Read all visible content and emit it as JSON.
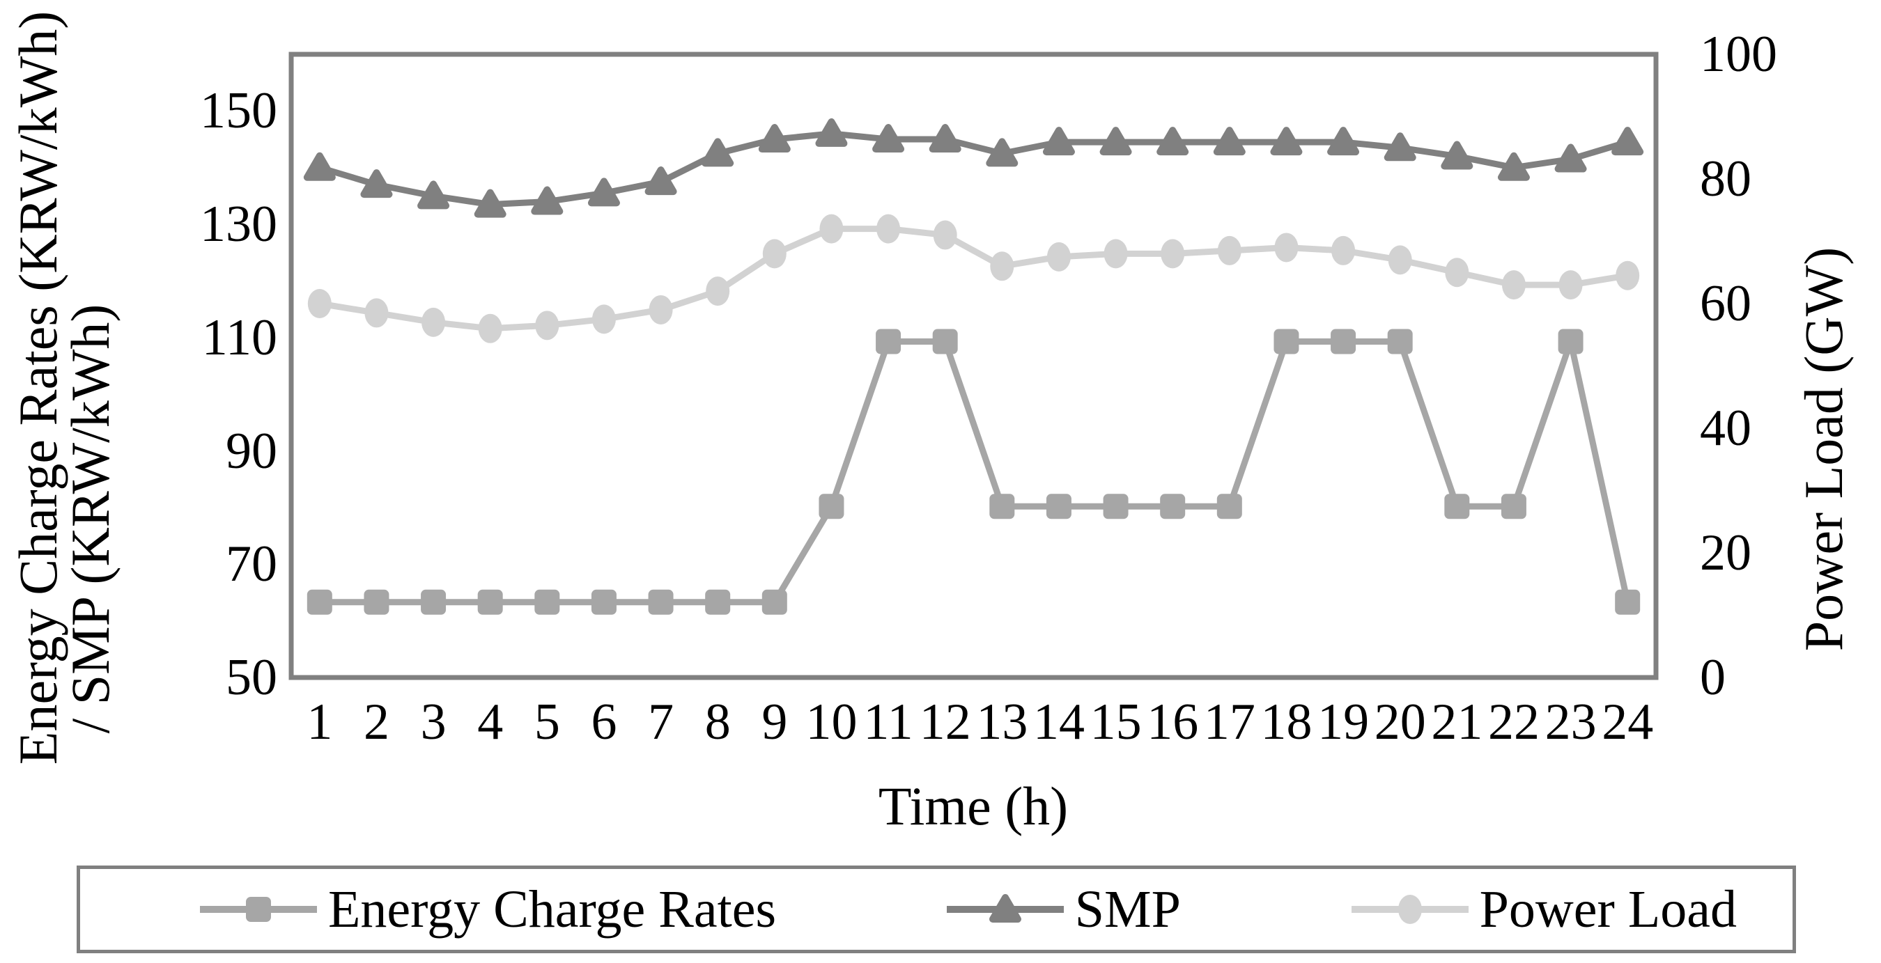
{
  "chart_data": {
    "type": "line",
    "title": "",
    "xlabel": "Time (h)",
    "ylabel_left_lines": [
      "Energy Charge Rates (KRW/kWh)",
      "/ SMP (KRW/kWh)"
    ],
    "ylabel_right": "Power Load (GW)",
    "x": [
      1,
      2,
      3,
      4,
      5,
      6,
      7,
      8,
      9,
      10,
      11,
      12,
      13,
      14,
      15,
      16,
      17,
      18,
      19,
      20,
      21,
      22,
      23,
      24
    ],
    "axes": {
      "left": {
        "min": 50,
        "max": 160,
        "ticks": [
          150,
          130,
          110,
          90,
          70,
          50
        ]
      },
      "right": {
        "min": 0,
        "max": 100,
        "ticks": [
          100,
          80,
          60,
          40,
          20,
          0
        ]
      }
    },
    "grid": false,
    "legend_position": "bottom",
    "series": [
      {
        "name": "Energy Charge Rates",
        "axis": "left",
        "unit": "KRW/kWh",
        "marker": "square",
        "color": "#a6a6a6",
        "values": [
          63.3,
          63.3,
          63.3,
          63.3,
          63.3,
          63.3,
          63.3,
          63.3,
          63.3,
          80.2,
          109.3,
          109.3,
          80.2,
          80.2,
          80.2,
          80.2,
          80.2,
          109.3,
          109.3,
          109.3,
          80.2,
          80.2,
          109.3,
          63.3
        ]
      },
      {
        "name": "SMP",
        "axis": "left",
        "unit": "KRW/kWh",
        "marker": "triangle",
        "color": "#808080",
        "values": [
          140,
          137,
          135,
          133.5,
          134,
          135.5,
          137.5,
          142.5,
          145,
          146,
          145,
          145,
          142.5,
          144.5,
          144.5,
          144.5,
          144.5,
          144.5,
          144.5,
          143.5,
          142,
          140,
          141.5,
          144.5
        ]
      },
      {
        "name": "Power Load",
        "axis": "right",
        "unit": "GW",
        "marker": "circle",
        "color": "#d2d2d2",
        "values": [
          60,
          58.5,
          57,
          56,
          56.5,
          57.5,
          59,
          62,
          68,
          72,
          72,
          71,
          66,
          67.5,
          68,
          68,
          68.5,
          69,
          68.5,
          67,
          65,
          63,
          63,
          64.5
        ]
      }
    ]
  },
  "colors": {
    "plot_border": "#808080",
    "text": "#000000",
    "background": "#ffffff"
  }
}
